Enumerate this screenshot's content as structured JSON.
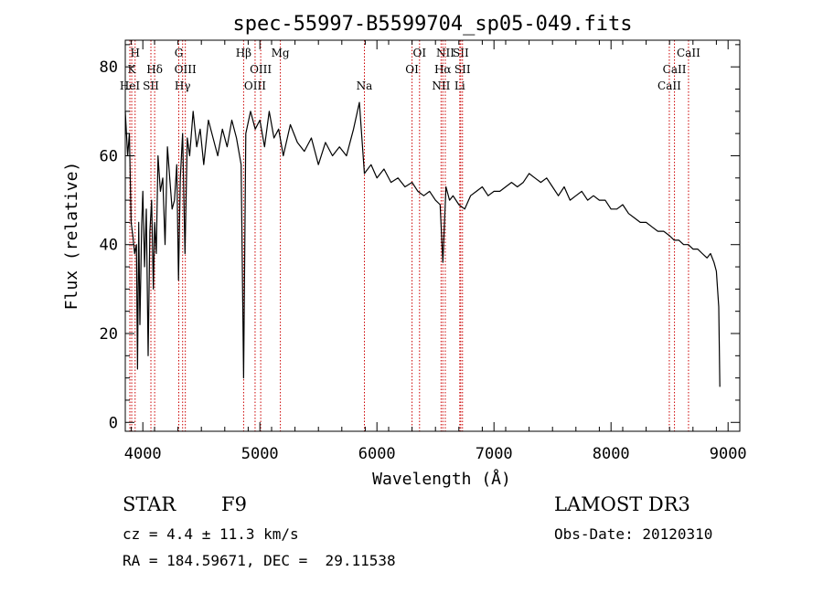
{
  "chart_data": {
    "type": "line",
    "title": "spec-55997-B5599704_sp05-049.fits",
    "xlabel": "Wavelength (Å)",
    "ylabel": "Flux (relative)",
    "xlim": [
      3850,
      9100
    ],
    "ylim": [
      -2,
      86
    ],
    "xticks": [
      4000,
      5000,
      6000,
      7000,
      8000,
      9000
    ],
    "yticks": [
      0,
      20,
      40,
      60,
      80
    ],
    "line_color": "#000000",
    "marker_color": "#cc0000",
    "series": [
      {
        "name": "flux",
        "x": [
          3850,
          3870,
          3885,
          3900,
          3915,
          3930,
          3945,
          3955,
          3965,
          3975,
          3990,
          4000,
          4015,
          4030,
          4045,
          4060,
          4075,
          4090,
          4101,
          4115,
          4130,
          4150,
          4170,
          4190,
          4210,
          4230,
          4250,
          4270,
          4290,
          4305,
          4320,
          4340,
          4360,
          4380,
          4400,
          4430,
          4460,
          4490,
          4520,
          4560,
          4600,
          4640,
          4680,
          4720,
          4760,
          4800,
          4840,
          4861,
          4880,
          4920,
          4960,
          5000,
          5040,
          5080,
          5120,
          5160,
          5200,
          5260,
          5320,
          5380,
          5440,
          5500,
          5560,
          5620,
          5680,
          5740,
          5800,
          5850,
          5893,
          5950,
          6000,
          6060,
          6120,
          6180,
          6240,
          6300,
          6350,
          6400,
          6450,
          6500,
          6540,
          6563,
          6590,
          6620,
          6650,
          6700,
          6750,
          6800,
          6850,
          6900,
          6950,
          7000,
          7050,
          7100,
          7150,
          7200,
          7250,
          7300,
          7350,
          7400,
          7450,
          7500,
          7550,
          7600,
          7650,
          7700,
          7750,
          7800,
          7850,
          7900,
          7950,
          8000,
          8050,
          8100,
          8150,
          8200,
          8250,
          8300,
          8350,
          8400,
          8450,
          8500,
          8540,
          8580,
          8620,
          8660,
          8700,
          8740,
          8780,
          8820,
          8850,
          8880,
          8900,
          8910,
          8920,
          8930
        ],
        "values": [
          70,
          60,
          65,
          45,
          42,
          38,
          40,
          12,
          45,
          22,
          44,
          52,
          35,
          48,
          15,
          43,
          50,
          30,
          45,
          38,
          60,
          52,
          55,
          40,
          62,
          55,
          48,
          50,
          58,
          32,
          55,
          65,
          38,
          64,
          60,
          70,
          62,
          66,
          58,
          68,
          64,
          60,
          66,
          62,
          68,
          64,
          58,
          10,
          65,
          70,
          66,
          68,
          62,
          70,
          64,
          66,
          60,
          67,
          63,
          61,
          64,
          58,
          63,
          60,
          62,
          60,
          66,
          72,
          56,
          58,
          55,
          57,
          54,
          55,
          53,
          54,
          52,
          51,
          52,
          50,
          49,
          36,
          53,
          50,
          51,
          49,
          48,
          51,
          52,
          53,
          51,
          52,
          52,
          53,
          54,
          53,
          54,
          56,
          55,
          54,
          55,
          53,
          51,
          53,
          50,
          51,
          52,
          50,
          51,
          50,
          50,
          48,
          48,
          49,
          47,
          46,
          45,
          45,
          44,
          43,
          43,
          42,
          41,
          41,
          40,
          40,
          39,
          39,
          38,
          37,
          38,
          36,
          34,
          30,
          26,
          8
        ]
      }
    ],
    "lines": [
      {
        "label": "H",
        "x": 3934,
        "row": 0
      },
      {
        "label": "K",
        "x": 3905,
        "row": 1
      },
      {
        "label": "HeI",
        "x": 3889,
        "row": 2
      },
      {
        "label": "SII",
        "x": 4069,
        "row": 2
      },
      {
        "label": "Hδ",
        "x": 4101,
        "row": 1
      },
      {
        "label": "G",
        "x": 4307,
        "row": 0
      },
      {
        "label": "OIII",
        "x": 4363,
        "row": 1
      },
      {
        "label": "Hγ",
        "x": 4340,
        "row": 2
      },
      {
        "label": "Hβ",
        "x": 4861,
        "row": 0
      },
      {
        "label": "OIII",
        "x": 5007,
        "row": 1
      },
      {
        "label": "OIII",
        "x": 4959,
        "row": 2
      },
      {
        "label": "Mg",
        "x": 5175,
        "row": 0
      },
      {
        "label": "Na",
        "x": 5893,
        "row": 2
      },
      {
        "label": "OI",
        "x": 6364,
        "row": 0
      },
      {
        "label": "OI",
        "x": 6300,
        "row": 1
      },
      {
        "label": "NII",
        "x": 6584,
        "row": 0
      },
      {
        "label": "SII",
        "x": 6716,
        "row": 0
      },
      {
        "label": "Hα",
        "x": 6563,
        "row": 1
      },
      {
        "label": "SII",
        "x": 6731,
        "row": 1
      },
      {
        "label": "NII",
        "x": 6548,
        "row": 2
      },
      {
        "label": "Li",
        "x": 6708,
        "row": 2
      },
      {
        "label": "CaII",
        "x": 8662,
        "row": 0
      },
      {
        "label": "CaII",
        "x": 8542,
        "row": 1
      },
      {
        "label": "CaII",
        "x": 8498,
        "row": 2
      }
    ]
  },
  "info": {
    "object_class": "STAR",
    "subclass": "F9",
    "survey": "LAMOST DR3",
    "cz": "cz = 4.4 ± 11.3 km/s",
    "obs_date": "Obs-Date: 20120310",
    "coords": "RA = 184.59671, DEC =  29.11538"
  }
}
